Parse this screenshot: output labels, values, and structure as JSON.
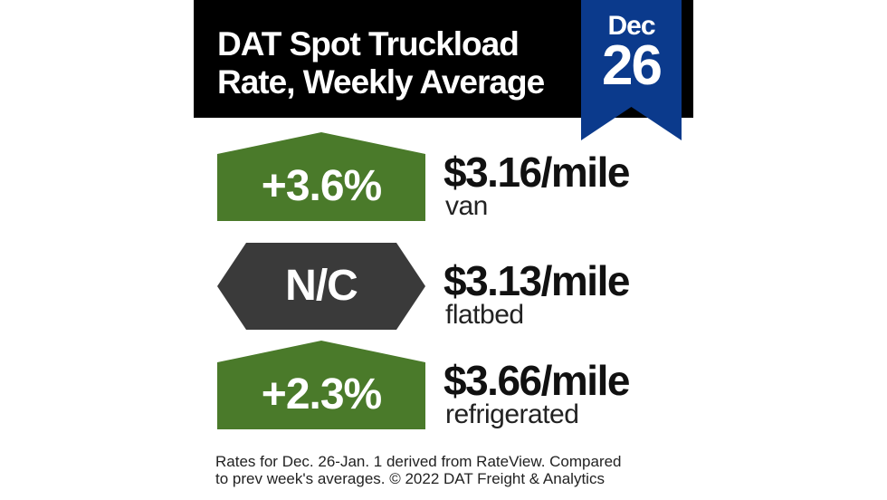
{
  "header": {
    "title_line1": "DAT Spot Truckload",
    "title_line2": "Rate, Weekly Average",
    "date_month": "Dec",
    "date_day": "26",
    "date_tag_color": "#0b3a8c"
  },
  "rows": [
    {
      "change": "+3.6%",
      "direction": "up",
      "badge_color": "#4a7a2a",
      "rate": "$3.16/mile",
      "equipment": "van"
    },
    {
      "change": "N/C",
      "direction": "none",
      "badge_color": "#3a3a3a",
      "rate": "$3.13/mile",
      "equipment": "flatbed"
    },
    {
      "change": "+2.3%",
      "direction": "up",
      "badge_color": "#4a7a2a",
      "rate": "$3.66/mile",
      "equipment": "refrigerated"
    }
  ],
  "footer": {
    "line1": "Rates for Dec. 26-Jan. 1 derived from RateView. Compared",
    "line2": "to prev week's averages. © 2022 DAT Freight & Analytics"
  }
}
